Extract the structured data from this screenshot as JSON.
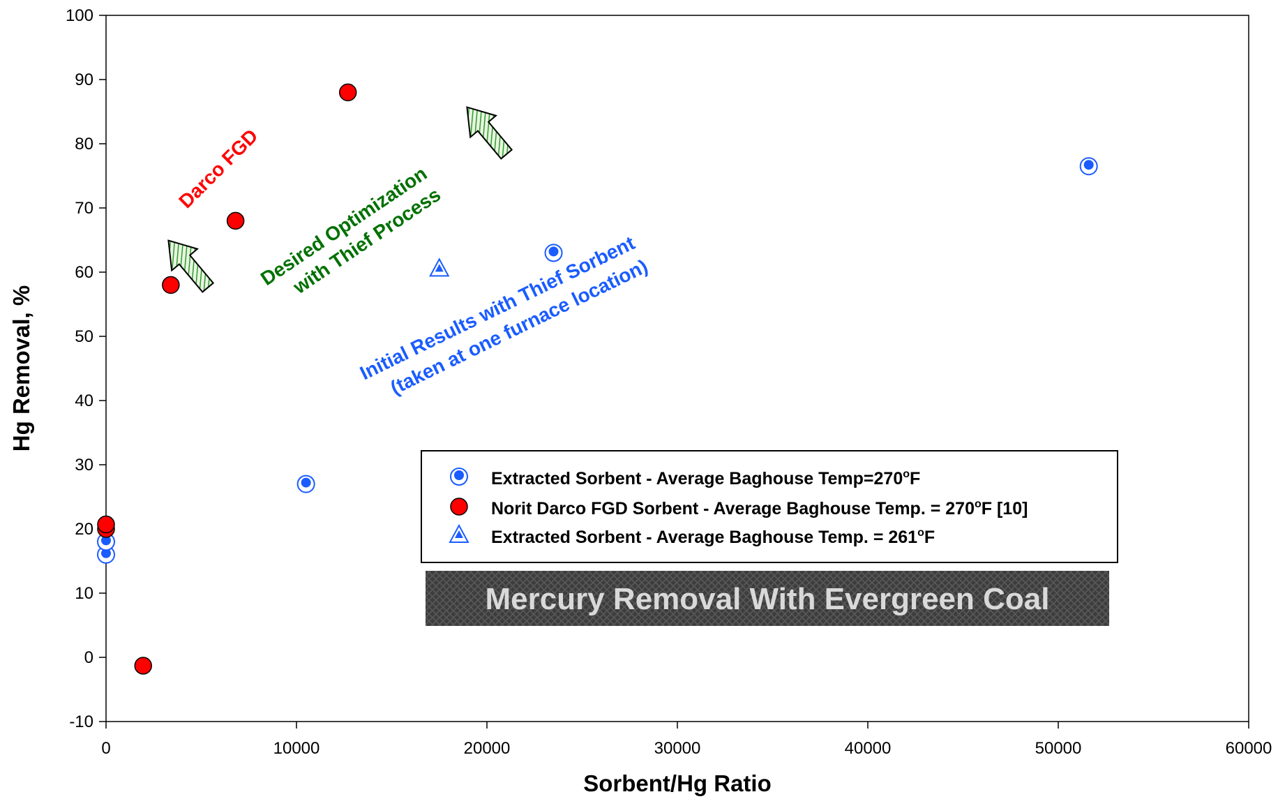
{
  "chart_data": {
    "type": "scatter",
    "xlabel": "Sorbent/Hg Ratio",
    "ylabel": "Hg Removal, %",
    "xlim": [
      0,
      60000
    ],
    "ylim": [
      -10,
      100
    ],
    "x_ticks": [
      0,
      10000,
      20000,
      30000,
      40000,
      50000,
      60000
    ],
    "y_ticks": [
      -10,
      0,
      10,
      20,
      30,
      40,
      50,
      60,
      70,
      80,
      90,
      100
    ],
    "grid": false,
    "legend_position": "lower-right",
    "series": [
      {
        "name": "Extracted Sorbent  - Average Baghouse Temp=270",
        "name_suffix": "F",
        "marker": "circle-dot",
        "color": "#1a5cff",
        "points": [
          {
            "x": 0,
            "y": 16
          },
          {
            "x": 0,
            "y": 18
          },
          {
            "x": 10500,
            "y": 27
          },
          {
            "x": 23500,
            "y": 63
          },
          {
            "x": 51600,
            "y": 76.5
          }
        ]
      },
      {
        "name": "Norit Darco FGD Sorbent - Average Baghouse Temp. = 270",
        "name_suffix": "F [10]",
        "marker": "circle-filled",
        "color": "#ff0000",
        "points": [
          {
            "x": 0,
            "y": 20
          },
          {
            "x": 0,
            "y": 20.7
          },
          {
            "x": 1950,
            "y": -1.3
          },
          {
            "x": 3400,
            "y": 58
          },
          {
            "x": 6800,
            "y": 68
          },
          {
            "x": 12700,
            "y": 88
          }
        ]
      },
      {
        "name": "Extracted Sorbent - Average Baghouse Temp. = 261",
        "name_suffix": "F",
        "marker": "triangle",
        "color": "#1a5cff",
        "points": [
          {
            "x": 17500,
            "y": 60.5
          }
        ]
      }
    ],
    "degree_symbol": "o",
    "annotations": {
      "darco": {
        "text": "Darco FGD",
        "color": "#ff0000"
      },
      "optimization_line1": {
        "text": "Desired Optimization",
        "color": "#007000"
      },
      "optimization_line2": {
        "text": "with Thief Process",
        "color": "#007000"
      },
      "initial_line1": {
        "text": "Initial Results with Thief Sorbent",
        "color": "#1a5cff"
      },
      "initial_line2": {
        "text": "(taken at one furnace location)",
        "color": "#1a5cff"
      }
    },
    "banner": {
      "text": "Mercury Removal With Evergreen Coal"
    }
  }
}
